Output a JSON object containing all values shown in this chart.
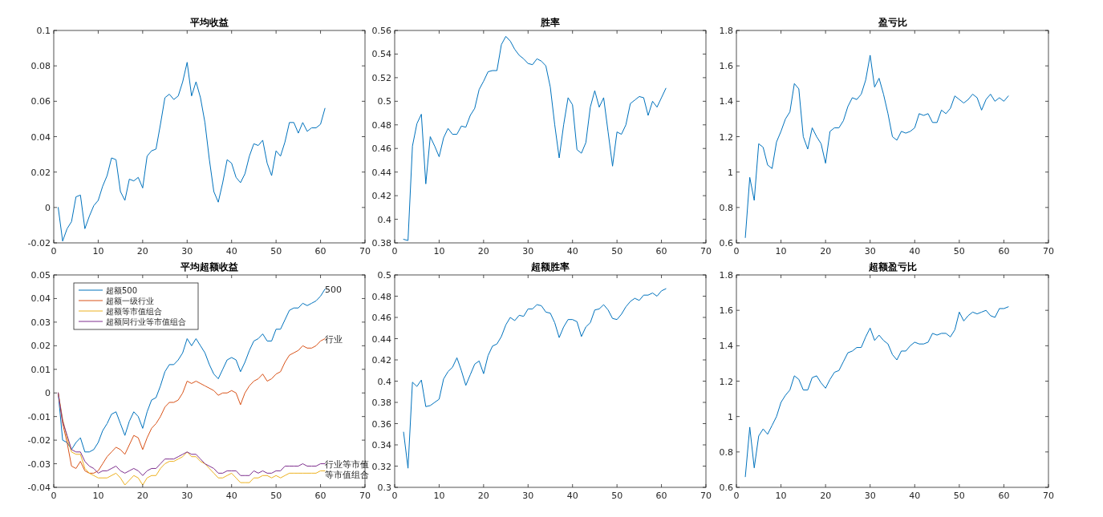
{
  "chart_data": [
    {
      "type": "line",
      "title": "平均收益",
      "x": [
        1,
        2,
        3,
        4,
        5,
        6,
        7,
        8,
        9,
        10,
        11,
        12,
        13,
        14,
        15,
        16,
        17,
        18,
        19,
        20,
        21,
        22,
        23,
        24,
        25,
        26,
        27,
        28,
        29,
        30,
        31,
        32,
        33,
        34,
        35,
        36,
        37,
        38,
        39,
        40,
        41,
        42,
        43,
        44,
        45,
        46,
        47,
        48,
        49,
        50,
        51,
        52,
        53,
        54,
        55,
        56,
        57,
        58,
        59,
        60,
        61
      ],
      "series": [
        {
          "color": "#0072bd",
          "values": [
            0,
            -0.019,
            -0.012,
            -0.008,
            0.006,
            0.007,
            -0.012,
            -0.005,
            0.001,
            0.004,
            0.012,
            0.018,
            0.028,
            0.027,
            0.009,
            0.004,
            0.016,
            0.015,
            0.017,
            0.011,
            0.029,
            0.032,
            0.033,
            0.047,
            0.062,
            0.064,
            0.061,
            0.063,
            0.071,
            0.082,
            0.063,
            0.071,
            0.062,
            0.048,
            0.027,
            0.009,
            0.003,
            0.014,
            0.027,
            0.025,
            0.017,
            0.014,
            0.019,
            0.029,
            0.036,
            0.035,
            0.038,
            0.025,
            0.018,
            0.032,
            0.029,
            0.037,
            0.048,
            0.048,
            0.042,
            0.048,
            0.043,
            0.045,
            0.045,
            0.047,
            0.056
          ]
        }
      ],
      "xlim": [
        0,
        70
      ],
      "xticks": [
        0,
        10,
        20,
        30,
        40,
        50,
        60,
        70
      ],
      "ylim": [
        -0.02,
        0.1
      ],
      "yticks": [
        -0.02,
        0,
        0.02,
        0.04,
        0.06,
        0.08,
        0.1
      ],
      "grid": false
    },
    {
      "type": "line",
      "title": "胜率",
      "x": [
        2,
        3,
        4,
        5,
        6,
        7,
        8,
        9,
        10,
        11,
        12,
        13,
        14,
        15,
        16,
        17,
        18,
        19,
        20,
        21,
        22,
        23,
        24,
        25,
        26,
        27,
        28,
        29,
        30,
        31,
        32,
        33,
        34,
        35,
        36,
        37,
        38,
        39,
        40,
        41,
        42,
        43,
        44,
        45,
        46,
        47,
        48,
        49,
        50,
        51,
        52,
        53,
        54,
        55,
        56,
        57,
        58,
        59,
        60,
        61
      ],
      "series": [
        {
          "color": "#0072bd",
          "values": [
            0.383,
            0.382,
            0.462,
            0.481,
            0.489,
            0.43,
            0.47,
            0.462,
            0.453,
            0.469,
            0.477,
            0.472,
            0.472,
            0.479,
            0.478,
            0.488,
            0.494,
            0.51,
            0.517,
            0.525,
            0.526,
            0.526,
            0.548,
            0.555,
            0.551,
            0.544,
            0.539,
            0.536,
            0.532,
            0.531,
            0.536,
            0.534,
            0.53,
            0.512,
            0.48,
            0.452,
            0.48,
            0.503,
            0.497,
            0.459,
            0.456,
            0.465,
            0.495,
            0.509,
            0.495,
            0.503,
            0.474,
            0.445,
            0.474,
            0.472,
            0.48,
            0.498,
            0.501,
            0.504,
            0.503,
            0.488,
            0.5,
            0.495,
            0.503,
            0.511
          ]
        }
      ],
      "xlim": [
        0,
        70
      ],
      "xticks": [
        0,
        10,
        20,
        30,
        40,
        50,
        60,
        70
      ],
      "ylim": [
        0.38,
        0.56
      ],
      "yticks": [
        0.38,
        0.4,
        0.42,
        0.44,
        0.46,
        0.48,
        0.5,
        0.52,
        0.54,
        0.56
      ],
      "grid": false
    },
    {
      "type": "line",
      "title": "盈亏比",
      "x": [
        2,
        3,
        4,
        5,
        6,
        7,
        8,
        9,
        10,
        11,
        12,
        13,
        14,
        15,
        16,
        17,
        18,
        19,
        20,
        21,
        22,
        23,
        24,
        25,
        26,
        27,
        28,
        29,
        30,
        31,
        32,
        33,
        34,
        35,
        36,
        37,
        38,
        39,
        40,
        41,
        42,
        43,
        44,
        45,
        46,
        47,
        48,
        49,
        50,
        51,
        52,
        53,
        54,
        55,
        56,
        57,
        58,
        59,
        60,
        61
      ],
      "series": [
        {
          "color": "#0072bd",
          "values": [
            0.63,
            0.97,
            0.84,
            1.16,
            1.14,
            1.04,
            1.02,
            1.17,
            1.23,
            1.3,
            1.34,
            1.5,
            1.47,
            1.2,
            1.13,
            1.25,
            1.2,
            1.16,
            1.05,
            1.23,
            1.25,
            1.25,
            1.29,
            1.37,
            1.42,
            1.41,
            1.44,
            1.52,
            1.66,
            1.48,
            1.53,
            1.44,
            1.33,
            1.2,
            1.18,
            1.23,
            1.22,
            1.23,
            1.25,
            1.33,
            1.32,
            1.33,
            1.28,
            1.28,
            1.35,
            1.33,
            1.36,
            1.43,
            1.41,
            1.39,
            1.41,
            1.44,
            1.42,
            1.35,
            1.41,
            1.44,
            1.4,
            1.42,
            1.4,
            1.43
          ]
        }
      ],
      "xlim": [
        0,
        70
      ],
      "xticks": [
        0,
        10,
        20,
        30,
        40,
        50,
        60,
        70
      ],
      "ylim": [
        0.6,
        1.8
      ],
      "yticks": [
        0.6,
        0.8,
        1,
        1.2,
        1.4,
        1.6,
        1.8
      ],
      "grid": false
    },
    {
      "type": "line",
      "title": "平均超额收益",
      "x": [
        1,
        2,
        3,
        4,
        5,
        6,
        7,
        8,
        9,
        10,
        11,
        12,
        13,
        14,
        15,
        16,
        17,
        18,
        19,
        20,
        21,
        22,
        23,
        24,
        25,
        26,
        27,
        28,
        29,
        30,
        31,
        32,
        33,
        34,
        35,
        36,
        37,
        38,
        39,
        40,
        41,
        42,
        43,
        44,
        45,
        46,
        47,
        48,
        49,
        50,
        51,
        52,
        53,
        54,
        55,
        56,
        57,
        58,
        59,
        60,
        61
      ],
      "series": [
        {
          "name": "超额500",
          "color": "#0072bd",
          "values": [
            0,
            -0.02,
            -0.021,
            -0.024,
            -0.021,
            -0.019,
            -0.025,
            -0.025,
            -0.024,
            -0.021,
            -0.016,
            -0.013,
            -0.009,
            -0.008,
            -0.013,
            -0.018,
            -0.012,
            -0.008,
            -0.01,
            -0.015,
            -0.008,
            -0.003,
            -0.002,
            0.003,
            0.009,
            0.012,
            0.012,
            0.014,
            0.017,
            0.023,
            0.02,
            0.023,
            0.02,
            0.017,
            0.012,
            0.008,
            0.006,
            0.01,
            0.014,
            0.015,
            0.014,
            0.009,
            0.013,
            0.018,
            0.022,
            0.023,
            0.025,
            0.022,
            0.022,
            0.027,
            0.027,
            0.031,
            0.035,
            0.036,
            0.036,
            0.038,
            0.037,
            0.038,
            0.039,
            0.041,
            0.044
          ]
        },
        {
          "name": "超额一级行业",
          "color": "#d95319",
          "values": [
            0,
            -0.013,
            -0.021,
            -0.031,
            -0.032,
            -0.029,
            -0.033,
            -0.034,
            -0.034,
            -0.033,
            -0.03,
            -0.027,
            -0.025,
            -0.023,
            -0.024,
            -0.026,
            -0.022,
            -0.018,
            -0.019,
            -0.024,
            -0.019,
            -0.015,
            -0.013,
            -0.01,
            -0.006,
            -0.004,
            -0.004,
            -0.003,
            0.0,
            0.005,
            0.004,
            0.005,
            0.004,
            0.003,
            0.002,
            0.001,
            -0.001,
            0.0,
            0.0,
            0.001,
            0.0,
            -0.005,
            0.0,
            0.003,
            0.005,
            0.006,
            0.008,
            0.005,
            0.006,
            0.008,
            0.009,
            0.013,
            0.016,
            0.017,
            0.018,
            0.02,
            0.019,
            0.019,
            0.02,
            0.022,
            0.023
          ]
        },
        {
          "name": "超额等市值组合",
          "color": "#edb120",
          "values": [
            0,
            -0.011,
            -0.019,
            -0.025,
            -0.026,
            -0.026,
            -0.032,
            -0.034,
            -0.035,
            -0.036,
            -0.036,
            -0.036,
            -0.035,
            -0.034,
            -0.036,
            -0.039,
            -0.037,
            -0.035,
            -0.036,
            -0.039,
            -0.036,
            -0.035,
            -0.035,
            -0.032,
            -0.03,
            -0.029,
            -0.029,
            -0.028,
            -0.027,
            -0.025,
            -0.027,
            -0.027,
            -0.029,
            -0.03,
            -0.032,
            -0.034,
            -0.036,
            -0.036,
            -0.035,
            -0.034,
            -0.036,
            -0.038,
            -0.038,
            -0.038,
            -0.036,
            -0.036,
            -0.035,
            -0.035,
            -0.036,
            -0.035,
            -0.036,
            -0.035,
            -0.034,
            -0.034,
            -0.034,
            -0.034,
            -0.034,
            -0.034,
            -0.034,
            -0.033,
            -0.033
          ]
        },
        {
          "name": "超额同行业等市值组合",
          "color": "#7e2f8e",
          "values": [
            0,
            -0.012,
            -0.018,
            -0.024,
            -0.025,
            -0.025,
            -0.029,
            -0.031,
            -0.032,
            -0.034,
            -0.033,
            -0.033,
            -0.032,
            -0.031,
            -0.033,
            -0.034,
            -0.033,
            -0.032,
            -0.033,
            -0.035,
            -0.033,
            -0.032,
            -0.032,
            -0.03,
            -0.028,
            -0.028,
            -0.028,
            -0.027,
            -0.026,
            -0.025,
            -0.026,
            -0.026,
            -0.028,
            -0.03,
            -0.031,
            -0.032,
            -0.034,
            -0.034,
            -0.033,
            -0.033,
            -0.033,
            -0.035,
            -0.035,
            -0.035,
            -0.033,
            -0.034,
            -0.033,
            -0.034,
            -0.034,
            -0.033,
            -0.033,
            -0.031,
            -0.031,
            -0.031,
            -0.031,
            -0.03,
            -0.031,
            -0.031,
            -0.031,
            -0.03,
            -0.03
          ]
        }
      ],
      "annotations": [
        "500",
        "行业",
        "等市值组合",
        "行业等市值"
      ],
      "legend": "top left",
      "xlim": [
        0,
        70
      ],
      "xticks": [
        0,
        10,
        20,
        30,
        40,
        50,
        60,
        70
      ],
      "ylim": [
        -0.04,
        0.05
      ],
      "yticks": [
        -0.04,
        -0.03,
        -0.02,
        -0.01,
        0,
        0.01,
        0.02,
        0.03,
        0.04,
        0.05
      ],
      "grid": false
    },
    {
      "type": "line",
      "title": "超额胜率",
      "x": [
        2,
        3,
        4,
        5,
        6,
        7,
        8,
        9,
        10,
        11,
        12,
        13,
        14,
        15,
        16,
        17,
        18,
        19,
        20,
        21,
        22,
        23,
        24,
        25,
        26,
        27,
        28,
        29,
        30,
        31,
        32,
        33,
        34,
        35,
        36,
        37,
        38,
        39,
        40,
        41,
        42,
        43,
        44,
        45,
        46,
        47,
        48,
        49,
        50,
        51,
        52,
        53,
        54,
        55,
        56,
        57,
        58,
        59,
        60,
        61
      ],
      "series": [
        {
          "color": "#0072bd",
          "values": [
            0.352,
            0.318,
            0.399,
            0.395,
            0.401,
            0.376,
            0.377,
            0.38,
            0.383,
            0.402,
            0.409,
            0.413,
            0.422,
            0.41,
            0.396,
            0.406,
            0.416,
            0.419,
            0.407,
            0.424,
            0.433,
            0.435,
            0.442,
            0.453,
            0.46,
            0.457,
            0.462,
            0.461,
            0.468,
            0.468,
            0.472,
            0.471,
            0.465,
            0.464,
            0.455,
            0.441,
            0.451,
            0.458,
            0.458,
            0.456,
            0.442,
            0.451,
            0.455,
            0.467,
            0.468,
            0.472,
            0.467,
            0.459,
            0.458,
            0.463,
            0.47,
            0.475,
            0.478,
            0.476,
            0.481,
            0.481,
            0.483,
            0.48,
            0.485,
            0.487
          ]
        }
      ],
      "xlim": [
        0,
        70
      ],
      "xticks": [
        0,
        10,
        20,
        30,
        40,
        50,
        60,
        70
      ],
      "ylim": [
        0.3,
        0.5
      ],
      "yticks": [
        0.3,
        0.32,
        0.34,
        0.36,
        0.38,
        0.4,
        0.42,
        0.44,
        0.46,
        0.48,
        0.5
      ],
      "grid": false
    },
    {
      "type": "line",
      "title": "超额盈亏比",
      "x": [
        2,
        3,
        4,
        5,
        6,
        7,
        8,
        9,
        10,
        11,
        12,
        13,
        14,
        15,
        16,
        17,
        18,
        19,
        20,
        21,
        22,
        23,
        24,
        25,
        26,
        27,
        28,
        29,
        30,
        31,
        32,
        33,
        34,
        35,
        36,
        37,
        38,
        39,
        40,
        41,
        42,
        43,
        44,
        45,
        46,
        47,
        48,
        49,
        50,
        51,
        52,
        53,
        54,
        55,
        56,
        57,
        58,
        59,
        60,
        61
      ],
      "series": [
        {
          "color": "#0072bd",
          "values": [
            0.66,
            0.94,
            0.71,
            0.89,
            0.93,
            0.9,
            0.95,
            1.0,
            1.08,
            1.12,
            1.15,
            1.23,
            1.21,
            1.15,
            1.15,
            1.22,
            1.23,
            1.19,
            1.16,
            1.21,
            1.25,
            1.26,
            1.31,
            1.36,
            1.37,
            1.39,
            1.39,
            1.45,
            1.5,
            1.43,
            1.46,
            1.43,
            1.41,
            1.35,
            1.32,
            1.37,
            1.37,
            1.4,
            1.42,
            1.41,
            1.41,
            1.42,
            1.47,
            1.46,
            1.47,
            1.47,
            1.45,
            1.49,
            1.59,
            1.54,
            1.57,
            1.59,
            1.58,
            1.59,
            1.6,
            1.57,
            1.56,
            1.61,
            1.61,
            1.62
          ]
        }
      ],
      "xlim": [
        0,
        70
      ],
      "xticks": [
        0,
        10,
        20,
        30,
        40,
        50,
        60,
        70
      ],
      "ylim": [
        0.6,
        1.8
      ],
      "yticks": [
        0.6,
        0.8,
        1,
        1.2,
        1.4,
        1.6,
        1.8
      ],
      "grid": false
    }
  ]
}
